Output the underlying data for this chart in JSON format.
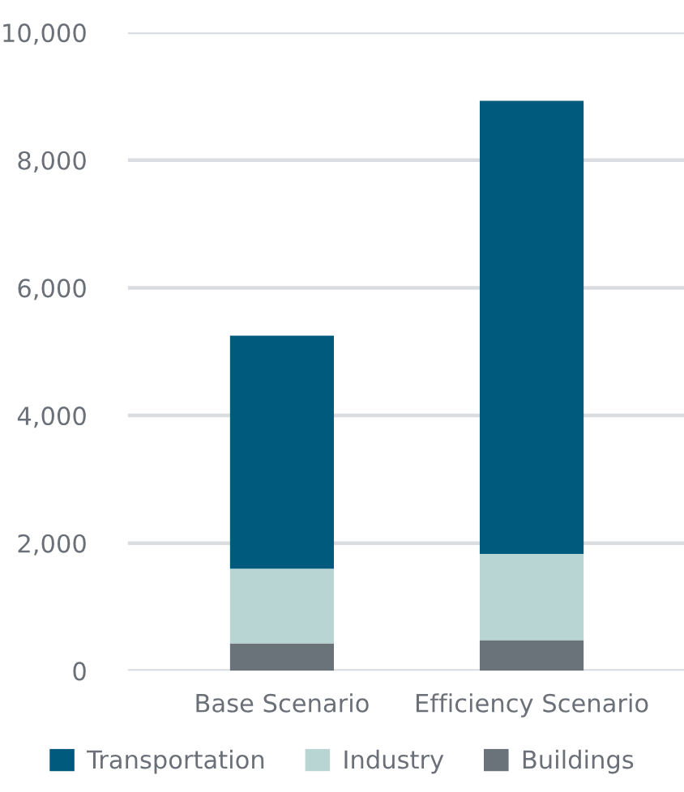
{
  "chart_data": {
    "type": "bar",
    "stacked": true,
    "categories": [
      "Base Scenario",
      "Efficiency Scenario"
    ],
    "series": [
      {
        "name": "Buildings",
        "color": "#6a737a",
        "values": [
          430,
          480
        ]
      },
      {
        "name": "Industry",
        "color": "#b8d4d3",
        "values": [
          1170,
          1350
        ]
      },
      {
        "name": "Transportation",
        "color": "#005a7e",
        "values": [
          3650,
          7100
        ]
      }
    ],
    "ylim": [
      0,
      10000
    ],
    "yticks": [
      {
        "value": 0,
        "label": "0"
      },
      {
        "value": 2000,
        "label": "2,000"
      },
      {
        "value": 4000,
        "label": "4,000"
      },
      {
        "value": 6000,
        "label": "6,000"
      },
      {
        "value": 8000,
        "label": "8,000"
      },
      {
        "value": 10000,
        "label": "10,000"
      }
    ],
    "grid": "y",
    "legend": "bottom"
  }
}
